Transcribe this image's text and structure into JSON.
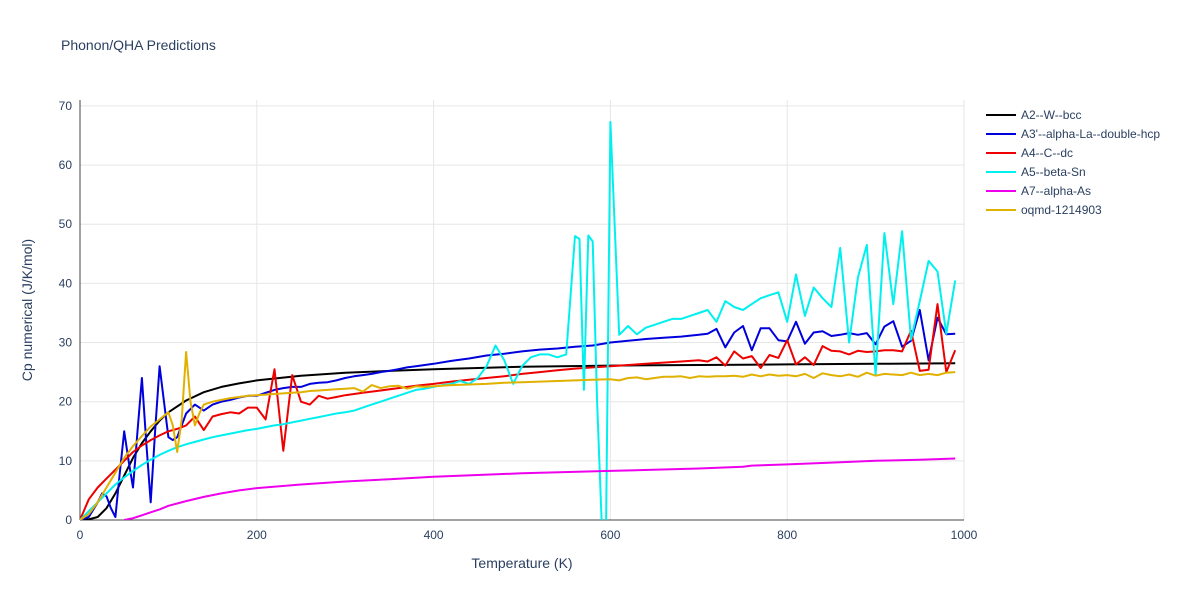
{
  "chart_data": {
    "type": "line",
    "title": "Phonon/QHA Predictions",
    "xlabel": "Temperature (K)",
    "ylabel": "Cp numerical (J/K/mol)",
    "xlim": [
      0,
      1000
    ],
    "ylim": [
      0,
      71
    ],
    "xticks": [
      0,
      200,
      400,
      600,
      800,
      1000
    ],
    "yticks": [
      0,
      10,
      20,
      30,
      40,
      50,
      60,
      70
    ],
    "grid": true,
    "legend_position": "top-right",
    "series": [
      {
        "name": "A2--W--bcc",
        "color": "#000000",
        "x": [
          0,
          10,
          20,
          30,
          40,
          50,
          60,
          70,
          80,
          90,
          100,
          120,
          140,
          160,
          180,
          200,
          250,
          300,
          350,
          400,
          450,
          500,
          600,
          700,
          800,
          900,
          990
        ],
        "y": [
          0,
          0.1,
          0.5,
          2,
          4.5,
          7.5,
          10.5,
          13,
          15,
          16.8,
          18.2,
          20.2,
          21.6,
          22.5,
          23.1,
          23.6,
          24.4,
          24.9,
          25.2,
          25.5,
          25.7,
          25.9,
          26.1,
          26.2,
          26.3,
          26.4,
          26.5
        ]
      },
      {
        "name": "A3'--alpha-La--double-hcp",
        "color": "#0000dd",
        "x": [
          0,
          10,
          20,
          25,
          30,
          35,
          40,
          45,
          50,
          55,
          60,
          65,
          70,
          75,
          80,
          85,
          90,
          95,
          100,
          105,
          110,
          115,
          120,
          130,
          140,
          150,
          160,
          170,
          180,
          190,
          200,
          210,
          220,
          230,
          240,
          250,
          260,
          270,
          280,
          290,
          300,
          310,
          320,
          330,
          340,
          350,
          360,
          370,
          380,
          390,
          400,
          420,
          440,
          460,
          480,
          500,
          520,
          540,
          560,
          580,
          600,
          620,
          640,
          660,
          680,
          700,
          710,
          720,
          730,
          740,
          750,
          760,
          770,
          780,
          790,
          800,
          810,
          820,
          830,
          840,
          850,
          860,
          870,
          880,
          890,
          900,
          910,
          920,
          930,
          940,
          950,
          960,
          970,
          980,
          990
        ],
        "y": [
          0,
          0.5,
          3,
          4.5,
          4,
          2,
          0.5,
          8,
          15,
          10,
          5.5,
          15,
          24,
          13,
          3,
          15,
          26,
          20,
          14,
          13.5,
          14,
          16,
          18,
          19.5,
          18.5,
          19.5,
          20,
          20.3,
          20.7,
          21,
          21,
          21.5,
          22,
          22.3,
          22.5,
          22.5,
          23,
          23.2,
          23.3,
          23.6,
          24,
          24.3,
          24.5,
          24.7,
          25,
          25.2,
          25.5,
          25.8,
          26,
          26.2,
          26.4,
          26.9,
          27.3,
          27.8,
          28.1,
          28.5,
          28.8,
          29,
          29.3,
          29.5,
          30,
          30.3,
          30.6,
          30.8,
          31,
          31.3,
          31.5,
          32.3,
          29.2,
          31.7,
          32.8,
          28.7,
          32.4,
          32.4,
          30.4,
          30.2,
          33.5,
          29.8,
          31.7,
          31.9,
          31.1,
          31.3,
          31.6,
          31.3,
          31.6,
          29.7,
          32.7,
          33.6,
          29.3,
          30.3,
          35.5,
          27,
          34.2,
          31.4,
          31.5
        ]
      },
      {
        "name": "A4--C--dc",
        "color": "#ee0000",
        "x": [
          0,
          10,
          20,
          30,
          40,
          50,
          60,
          70,
          80,
          90,
          100,
          110,
          120,
          130,
          140,
          150,
          160,
          170,
          180,
          190,
          200,
          210,
          220,
          230,
          240,
          250,
          260,
          270,
          280,
          290,
          300,
          320,
          340,
          360,
          380,
          400,
          420,
          440,
          460,
          480,
          500,
          520,
          540,
          560,
          580,
          600,
          620,
          640,
          660,
          680,
          700,
          710,
          720,
          730,
          740,
          750,
          760,
          770,
          780,
          790,
          800,
          810,
          820,
          830,
          840,
          850,
          860,
          870,
          880,
          890,
          900,
          910,
          920,
          930,
          940,
          950,
          960,
          970,
          980,
          990
        ],
        "y": [
          0,
          3.5,
          5.5,
          7,
          8.5,
          10,
          11.5,
          12.6,
          13.5,
          14.3,
          15,
          15.4,
          16,
          17.5,
          15.2,
          17.5,
          17.9,
          18.2,
          18,
          19,
          19,
          17,
          25.5,
          11.7,
          24.5,
          20,
          19.5,
          21,
          20.5,
          20.8,
          21.1,
          21.5,
          21.9,
          22.3,
          22.7,
          23,
          23.4,
          23.7,
          24,
          24.3,
          24.7,
          25,
          25.3,
          25.6,
          25.8,
          26,
          26.2,
          26.4,
          26.6,
          26.8,
          27,
          26.8,
          27.5,
          26.1,
          28.5,
          27.3,
          27.7,
          25.7,
          27.9,
          27.4,
          30.4,
          26.3,
          27.5,
          26.2,
          29.4,
          28.6,
          28.5,
          28,
          28.6,
          28.4,
          28.5,
          28.7,
          28.7,
          28.5,
          32,
          25.2,
          25.4,
          36.5,
          25,
          28.7
        ]
      },
      {
        "name": "A5--beta-Sn",
        "color": "#00f0f0",
        "x": [
          0,
          10,
          20,
          30,
          40,
          50,
          60,
          70,
          80,
          90,
          100,
          110,
          120,
          130,
          140,
          150,
          160,
          170,
          180,
          190,
          200,
          210,
          220,
          230,
          240,
          250,
          260,
          270,
          280,
          290,
          300,
          310,
          320,
          330,
          340,
          350,
          360,
          370,
          380,
          390,
          400,
          410,
          420,
          430,
          440,
          450,
          460,
          470,
          480,
          490,
          500,
          510,
          520,
          530,
          540,
          550,
          560,
          565,
          570,
          575,
          580,
          585,
          590,
          595,
          600,
          610,
          620,
          630,
          640,
          650,
          660,
          670,
          680,
          690,
          700,
          710,
          720,
          730,
          740,
          750,
          760,
          770,
          780,
          790,
          800,
          810,
          820,
          830,
          840,
          850,
          860,
          870,
          880,
          890,
          900,
          910,
          920,
          930,
          940,
          950,
          960,
          970,
          980,
          990
        ],
        "y": [
          0,
          1.5,
          3,
          4.5,
          6,
          7.2,
          8.3,
          9.3,
          10.2,
          11,
          11.7,
          12.3,
          12.8,
          13.2,
          13.6,
          14,
          14.3,
          14.6,
          14.9,
          15.2,
          15.4,
          15.7,
          16,
          16.2,
          16.5,
          16.8,
          17.1,
          17.4,
          17.7,
          18,
          18.2,
          18.5,
          19,
          19.5,
          20,
          20.5,
          21,
          21.5,
          22,
          22.2,
          22.5,
          22.8,
          23,
          23.5,
          23,
          24,
          26,
          29.5,
          27,
          23,
          26,
          27.5,
          28,
          28,
          27.5,
          28,
          48,
          47.5,
          22,
          48.1,
          47.1,
          20,
          0,
          -2,
          67.3,
          31.3,
          32.8,
          31.4,
          32.5,
          33,
          33.5,
          34,
          34,
          34.5,
          35,
          35.5,
          33.5,
          37,
          36,
          35.5,
          36.5,
          37.5,
          38,
          38.5,
          33.5,
          41.5,
          34.5,
          39.3,
          37.5,
          36,
          46,
          30,
          41,
          46.5,
          24.5,
          48.5,
          36.5,
          48.8,
          30.5,
          37,
          43.8,
          42,
          31.5,
          40.5
        ]
      },
      {
        "name": "A7--alpha-As",
        "color": "#ee00ee",
        "x": [
          50,
          60,
          70,
          80,
          90,
          100,
          120,
          140,
          160,
          180,
          200,
          250,
          300,
          350,
          400,
          450,
          500,
          600,
          700,
          750,
          760,
          800,
          850,
          900,
          950,
          990
        ],
        "y": [
          0,
          0.3,
          0.8,
          1.3,
          1.8,
          2.4,
          3.2,
          3.9,
          4.5,
          5,
          5.4,
          6,
          6.5,
          6.9,
          7.3,
          7.6,
          7.9,
          8.3,
          8.7,
          9,
          9.2,
          9.4,
          9.7,
          10,
          10.2,
          10.4
        ]
      },
      {
        "name": "oqmd-1214903",
        "color": "#e1b100",
        "x": [
          0,
          10,
          20,
          30,
          40,
          50,
          60,
          70,
          80,
          90,
          100,
          105,
          110,
          115,
          120,
          125,
          130,
          135,
          140,
          150,
          160,
          170,
          180,
          190,
          200,
          210,
          220,
          230,
          240,
          250,
          260,
          270,
          280,
          290,
          300,
          310,
          320,
          330,
          340,
          350,
          360,
          370,
          380,
          390,
          400,
          420,
          440,
          460,
          480,
          500,
          520,
          540,
          560,
          580,
          600,
          610,
          620,
          630,
          640,
          650,
          660,
          670,
          680,
          690,
          700,
          710,
          720,
          730,
          740,
          750,
          760,
          770,
          780,
          790,
          800,
          810,
          820,
          830,
          840,
          850,
          860,
          870,
          880,
          890,
          900,
          910,
          920,
          930,
          940,
          950,
          960,
          970,
          980,
          990
        ],
        "y": [
          0,
          1,
          3,
          5.5,
          8,
          10.5,
          12.5,
          14.2,
          15.8,
          17,
          18.2,
          16,
          11.5,
          17,
          28.4,
          20,
          16,
          18,
          19.5,
          20,
          20.3,
          20.6,
          20.8,
          21,
          21.1,
          21.2,
          21.3,
          21.4,
          21.5,
          21.6,
          21.8,
          21.9,
          22,
          22.1,
          22.2,
          22.3,
          21.7,
          22.8,
          22.3,
          22.6,
          22.7,
          22.2,
          22.6,
          22.5,
          22.6,
          22.8,
          22.9,
          23,
          23.2,
          23.3,
          23.4,
          23.5,
          23.6,
          23.7,
          23.8,
          23.6,
          24,
          24.1,
          23.8,
          24,
          24.2,
          24.2,
          24.3,
          24,
          24.3,
          24.2,
          24.3,
          24.3,
          24.4,
          24.2,
          24.6,
          24.3,
          24.6,
          24.4,
          24.5,
          24.3,
          24.7,
          24,
          24.8,
          24.5,
          24.3,
          24.6,
          24.2,
          24.9,
          24.4,
          24.7,
          24.6,
          24.5,
          24.9,
          24.5,
          24.7,
          24.5,
          24.9,
          25
        ]
      }
    ]
  }
}
